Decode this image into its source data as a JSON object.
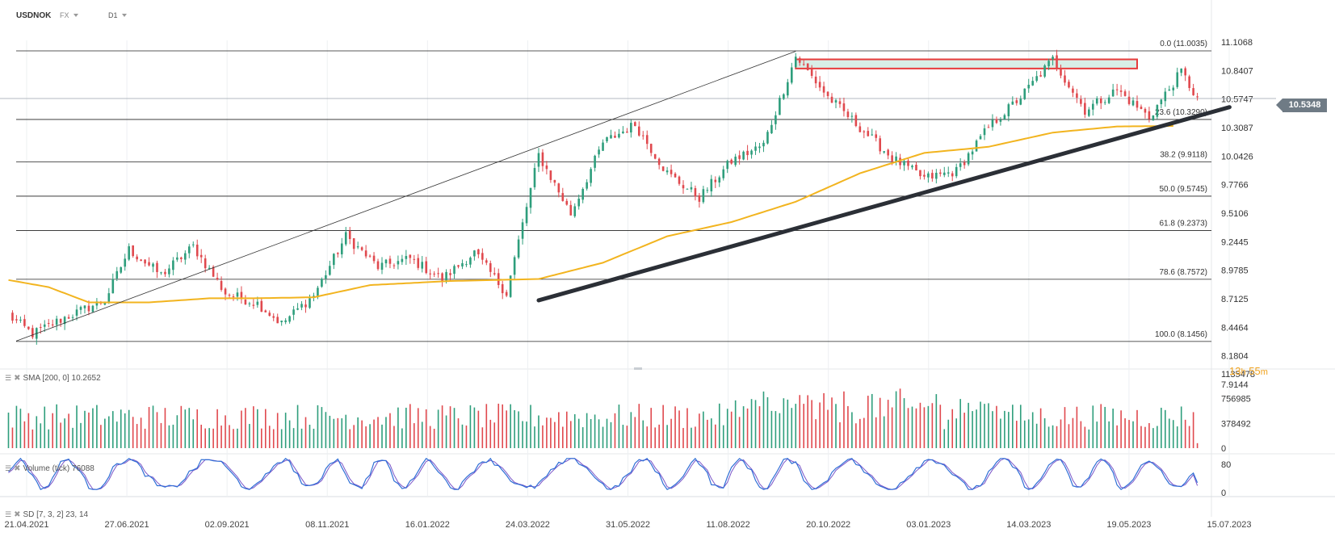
{
  "header": {
    "symbol": "USDNOK",
    "market": "FX",
    "timeframe": "D1"
  },
  "indicators": {
    "sma": "SMA [200, 0] 10.2652",
    "volume": "Volume (tick) 76088",
    "stoch": "SD [7, 3, 2] 23, 14"
  },
  "current_price": "10.5348",
  "countdown": {
    "hours": "13",
    "h": "h",
    "minutes": "55",
    "m": "m"
  },
  "colors": {
    "up": "#2e9e7c",
    "down": "#e0494e",
    "sma": "#f2b41f",
    "trendline": "#2b2f36",
    "zone_fill": "#d8efe7",
    "zone_border": "#e63b3b",
    "stoch_k": "#2f6fd6",
    "stoch_d": "#7a55c8"
  },
  "chart_data": {
    "type": "candlestick",
    "instrument": "USDNOK",
    "x_ticks": [
      "21.04.2021",
      "27.06.2021",
      "02.09.2021",
      "08.11.2021",
      "16.01.2022",
      "24.03.2022",
      "31.05.2022",
      "11.08.2022",
      "20.10.2022",
      "03.01.2023",
      "14.03.2023",
      "19.05.2023",
      "15.07.2023"
    ],
    "y_ticks": [
      "11.1068",
      "10.8407",
      "10.5747",
      "10.3087",
      "10.0426",
      "9.7766",
      "9.5106",
      "9.2445",
      "8.9785",
      "8.7125",
      "8.4464",
      "8.1804",
      "7.9144"
    ],
    "ylim": [
      7.9144,
      11.1068
    ],
    "fibonacci": [
      {
        "label": "0.0 (11.0035)",
        "value": 11.0035
      },
      {
        "label": "23.6 (10.3290)",
        "value": 10.329
      },
      {
        "label": "38.2 (9.9118)",
        "value": 9.9118
      },
      {
        "label": "50.0 (9.5745)",
        "value": 9.5745
      },
      {
        "label": "61.8 (9.2373)",
        "value": 9.2373
      },
      {
        "label": "78.6 (8.7572)",
        "value": 8.7572
      },
      {
        "label": "100.0 (8.1456)",
        "value": 8.1456
      }
    ],
    "price_path": [
      [
        0,
        8.4
      ],
      [
        6,
        8.22
      ],
      [
        14,
        8.38
      ],
      [
        24,
        8.55
      ],
      [
        30,
        9.05
      ],
      [
        38,
        8.8
      ],
      [
        46,
        9.08
      ],
      [
        54,
        8.62
      ],
      [
        62,
        8.52
      ],
      [
        68,
        8.32
      ],
      [
        76,
        8.6
      ],
      [
        84,
        9.18
      ],
      [
        92,
        8.88
      ],
      [
        100,
        8.96
      ],
      [
        108,
        8.76
      ],
      [
        116,
        9.02
      ],
      [
        124,
        8.62
      ],
      [
        132,
        9.98
      ],
      [
        140,
        9.4
      ],
      [
        148,
        10.1
      ],
      [
        156,
        10.28
      ],
      [
        164,
        9.8
      ],
      [
        172,
        9.56
      ],
      [
        180,
        9.92
      ],
      [
        188,
        10.08
      ],
      [
        196,
        10.95
      ],
      [
        204,
        10.55
      ],
      [
        212,
        10.25
      ],
      [
        220,
        9.95
      ],
      [
        228,
        9.75
      ],
      [
        236,
        9.82
      ],
      [
        244,
        10.25
      ],
      [
        252,
        10.55
      ],
      [
        260,
        10.92
      ],
      [
        268,
        10.42
      ],
      [
        276,
        10.62
      ],
      [
        284,
        10.35
      ],
      [
        292,
        10.8
      ],
      [
        296,
        10.53
      ]
    ],
    "sma200_path": [
      [
        0,
        8.75
      ],
      [
        10,
        8.68
      ],
      [
        20,
        8.53
      ],
      [
        35,
        8.53
      ],
      [
        50,
        8.57
      ],
      [
        60,
        8.57
      ],
      [
        76,
        8.58
      ],
      [
        90,
        8.7
      ],
      [
        110,
        8.74
      ],
      [
        132,
        8.76
      ],
      [
        148,
        8.92
      ],
      [
        164,
        9.18
      ],
      [
        180,
        9.32
      ],
      [
        196,
        9.52
      ],
      [
        212,
        9.8
      ],
      [
        228,
        10.0
      ],
      [
        244,
        10.06
      ],
      [
        260,
        10.2
      ],
      [
        276,
        10.26
      ],
      [
        290,
        10.2652
      ]
    ],
    "trendlines": [
      {
        "from": [
          132,
          8.55
        ],
        "to": [
          304,
          10.45
        ]
      },
      {
        "from": [
          0,
          8.15
        ],
        "to": [
          196,
          11.0
        ]
      }
    ],
    "resistance_zone": {
      "y_low": 10.83,
      "y_high": 10.92
    },
    "last_price": 10.5348,
    "volume": {
      "y_ticks": [
        "1135478",
        "756985",
        "378492",
        "0"
      ],
      "ymax": 1135478,
      "last": 76088
    },
    "stochastic": {
      "y_ticks": [
        "80",
        "0"
      ],
      "k_last": 23,
      "d_last": 14
    }
  }
}
